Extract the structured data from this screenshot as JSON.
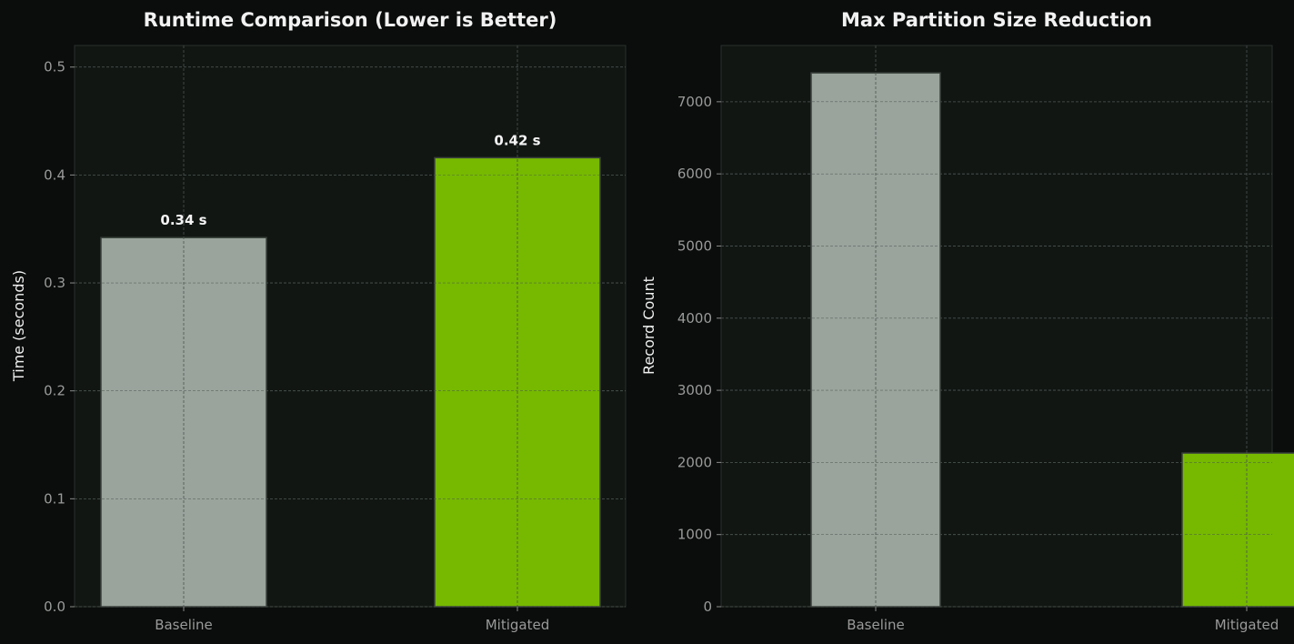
{
  "colors": {
    "figure_background": "#0a0d0b",
    "axes_background": "#111613",
    "spine": "#2b302d",
    "grid": "#4b5450",
    "baseline_bar": "#9aa39c",
    "mitigated_bar": "#76b900",
    "bar_edge": "#3a413c",
    "title_text": "#f2f2f2",
    "tick_text": "#9a9a9a"
  },
  "chart_data": [
    {
      "type": "bar",
      "title": "Runtime Comparison (Lower is Better)",
      "xlabel": "",
      "ylabel": "Time (seconds)",
      "categories": [
        "Baseline",
        "Mitigated"
      ],
      "values": [
        0.342,
        0.416
      ],
      "data_labels": [
        "0.34 s",
        "0.42 s"
      ],
      "ylim": [
        0,
        0.52
      ],
      "yticks": [
        0.0,
        0.1,
        0.2,
        0.3,
        0.4,
        0.5
      ],
      "ytick_labels": [
        "0.0",
        "0.1",
        "0.2",
        "0.3",
        "0.4",
        "0.5"
      ],
      "bar_colors": [
        "#9aa39c",
        "#76b900"
      ],
      "grid": true
    },
    {
      "type": "bar",
      "title": "Max Partition Size Reduction",
      "xlabel": "",
      "ylabel": "Record Count",
      "categories": [
        "Baseline",
        "Mitigated"
      ],
      "values": [
        7400,
        2130
      ],
      "data_labels": [],
      "ylim": [
        0,
        7780
      ],
      "yticks": [
        0,
        1000,
        2000,
        3000,
        4000,
        5000,
        6000,
        7000
      ],
      "ytick_labels": [
        "0",
        "1000",
        "2000",
        "3000",
        "4000",
        "5000",
        "6000",
        "7000"
      ],
      "bar_colors": [
        "#9aa39c",
        "#76b900"
      ],
      "grid": true
    }
  ]
}
